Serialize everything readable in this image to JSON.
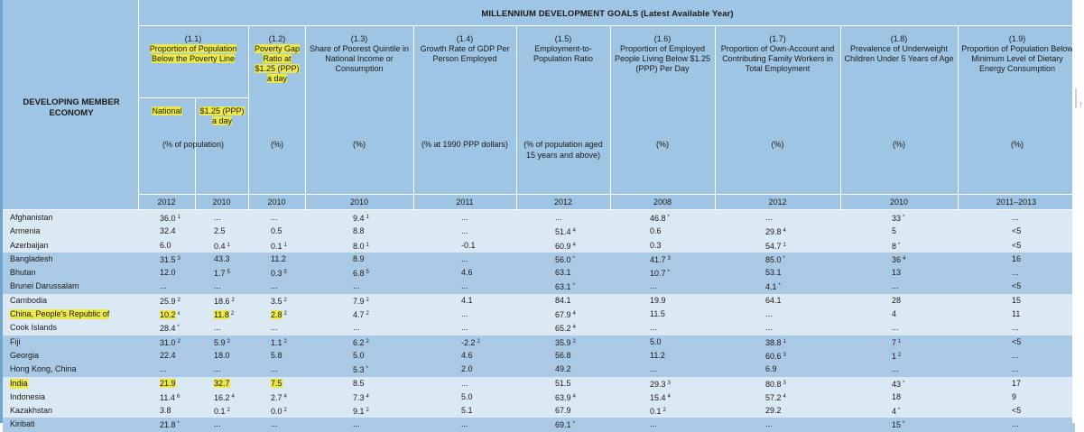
{
  "title": "MILLENNIUM DEVELOPMENT GOALS (Latest Available Year)",
  "row_header": "DEVELOPING MEMBER ECONOMY",
  "indicators": [
    {
      "num": "(1.1)",
      "label": "Proportion of Population Below the Poverty Line",
      "unit": "(% of population)"
    },
    {
      "num": "(1.2)",
      "label": "Poverty Gap Ratio at $1.25 (PPP) a day",
      "unit": "(%)"
    },
    {
      "num": "(1.3)",
      "label": "Share of Poorest Quintile in National Income or Consumption",
      "unit": "(%)"
    },
    {
      "num": "(1.4)",
      "label": "Growth Rate of GDP Per Person Employed",
      "unit": "(% at 1990 PPP dollars)"
    },
    {
      "num": "(1.5)",
      "label": "Employment-to-Population Ratio",
      "unit": "(% of population aged 15 years and above)"
    },
    {
      "num": "(1.6)",
      "label": "Proportion of Employed People Living Below $1.25 (PPP) Per Day",
      "unit": "(%)"
    },
    {
      "num": "(1.7)",
      "label": "Proportion of Own-Account and Contributing Family Workers in Total Employment",
      "unit": "(%)"
    },
    {
      "num": "(1.8)",
      "label": "Prevalence of Underweight Children Under 5 Years of Age",
      "unit": "(%)"
    },
    {
      "num": "(1.9)",
      "label": "Proportion of Population Below Minimum Level of Dietary Energy Consumption",
      "unit": "(%)"
    }
  ],
  "sub_national": "National",
  "sub_ppp": "$1.25 (PPP) a day",
  "years": [
    "2012",
    "2010",
    "2010",
    "2010",
    "2011",
    "2012",
    "2008",
    "2012",
    "2010",
    "2011–2013"
  ],
  "rows": [
    {
      "name": "Afghanistan",
      "v": [
        [
          "36.0",
          "1"
        ],
        [
          "...",
          ""
        ],
        [
          "...",
          ""
        ],
        [
          "9.4",
          "1"
        ],
        [
          "...",
          ""
        ],
        [
          "...",
          ""
        ],
        [
          "46.8",
          "*"
        ],
        [
          "...",
          ""
        ],
        [
          "33",
          "*"
        ],
        [
          "...",
          ""
        ]
      ]
    },
    {
      "name": "Armenia",
      "v": [
        [
          "32.4",
          ""
        ],
        [
          "2.5",
          ""
        ],
        [
          "0.5",
          ""
        ],
        [
          "8.8",
          ""
        ],
        [
          "...",
          ""
        ],
        [
          "51.4",
          "4"
        ],
        [
          "0.6",
          ""
        ],
        [
          "29.8",
          "4"
        ],
        [
          "5",
          ""
        ],
        [
          "<5",
          ""
        ]
      ]
    },
    {
      "name": "Azerbaijan",
      "v": [
        [
          "6.0",
          ""
        ],
        [
          "0.4",
          "1"
        ],
        [
          "0.1",
          "1"
        ],
        [
          "8.0",
          "1"
        ],
        [
          "-0.1",
          ""
        ],
        [
          "60.9",
          "4"
        ],
        [
          "0.3",
          ""
        ],
        [
          "54.7",
          "1"
        ],
        [
          "8",
          "*"
        ],
        [
          "<5",
          ""
        ]
      ]
    },
    {
      "name": "Bangladesh",
      "v": [
        [
          "31.5",
          "3"
        ],
        [
          "43.3",
          ""
        ],
        [
          "11.2",
          ""
        ],
        [
          "8.9",
          ""
        ],
        [
          "...",
          ""
        ],
        [
          "56.0",
          "*"
        ],
        [
          "41.7",
          "3"
        ],
        [
          "85.0",
          "*"
        ],
        [
          "36",
          "4"
        ],
        [
          "16",
          ""
        ]
      ]
    },
    {
      "name": "Bhutan",
      "v": [
        [
          "12.0",
          ""
        ],
        [
          "1.7",
          "5"
        ],
        [
          "0.3",
          "5"
        ],
        [
          "6.8",
          "5"
        ],
        [
          "4.6",
          ""
        ],
        [
          "63.1",
          ""
        ],
        [
          "10.7",
          "*"
        ],
        [
          "53.1",
          ""
        ],
        [
          "13",
          ""
        ],
        [
          "...",
          ""
        ]
      ]
    },
    {
      "name": "Brunei Darussalam",
      "v": [
        [
          "...",
          ""
        ],
        [
          "...",
          ""
        ],
        [
          "...",
          ""
        ],
        [
          "...",
          ""
        ],
        [
          "...",
          ""
        ],
        [
          "63.1",
          "*"
        ],
        [
          "...",
          ""
        ],
        [
          "4.1",
          "*"
        ],
        [
          "...",
          ""
        ],
        [
          "<5",
          ""
        ]
      ]
    },
    {
      "name": "Cambodia",
      "v": [
        [
          "25.9",
          "2"
        ],
        [
          "18.6",
          "2"
        ],
        [
          "3.5",
          "2"
        ],
        [
          "7.9",
          "2"
        ],
        [
          "4.1",
          ""
        ],
        [
          "84.1",
          ""
        ],
        [
          "19.9",
          ""
        ],
        [
          "64.1",
          ""
        ],
        [
          "28",
          ""
        ],
        [
          "15",
          ""
        ]
      ]
    },
    {
      "name": "China, People's Republic of",
      "v": [
        [
          "10.2",
          "x"
        ],
        [
          "11.8",
          "2"
        ],
        [
          "2.8",
          "2"
        ],
        [
          "4.7",
          "2"
        ],
        [
          "...",
          ""
        ],
        [
          "67.9",
          "4"
        ],
        [
          "11.5",
          ""
        ],
        [
          "...",
          ""
        ],
        [
          "4",
          ""
        ],
        [
          "11",
          ""
        ]
      ]
    },
    {
      "name": "Cook Islands",
      "v": [
        [
          "28.4",
          "*"
        ],
        [
          "...",
          ""
        ],
        [
          "...",
          ""
        ],
        [
          "...",
          ""
        ],
        [
          "...",
          ""
        ],
        [
          "65.2",
          "4"
        ],
        [
          "...",
          ""
        ],
        [
          "...",
          ""
        ],
        [
          "...",
          ""
        ],
        [
          "...",
          ""
        ]
      ]
    },
    {
      "name": "Fiji",
      "v": [
        [
          "31.0",
          "2"
        ],
        [
          "5.9",
          "2"
        ],
        [
          "1.1",
          "2"
        ],
        [
          "6.2",
          "2"
        ],
        [
          "-2.2",
          "2"
        ],
        [
          "35.9",
          "2"
        ],
        [
          "5.0",
          ""
        ],
        [
          "38.8",
          "1"
        ],
        [
          "7",
          "1"
        ],
        [
          "<5",
          ""
        ]
      ]
    },
    {
      "name": "Georgia",
      "v": [
        [
          "22.4",
          ""
        ],
        [
          "18.0",
          ""
        ],
        [
          "5.8",
          ""
        ],
        [
          "5.0",
          ""
        ],
        [
          "4.6",
          ""
        ],
        [
          "56.8",
          ""
        ],
        [
          "11.2",
          ""
        ],
        [
          "60.6",
          "3"
        ],
        [
          "1",
          "2"
        ],
        [
          "...",
          ""
        ]
      ]
    },
    {
      "name": "Hong Kong, China",
      "v": [
        [
          "...",
          ""
        ],
        [
          "...",
          ""
        ],
        [
          "...",
          ""
        ],
        [
          "5.3",
          "*"
        ],
        [
          "2.0",
          ""
        ],
        [
          "49.2",
          ""
        ],
        [
          "...",
          ""
        ],
        [
          "6.9",
          ""
        ],
        [
          "...",
          ""
        ],
        [
          "...",
          ""
        ]
      ]
    },
    {
      "name": "India",
      "v": [
        [
          "21.9",
          ""
        ],
        [
          "32.7",
          ""
        ],
        [
          "7.5",
          ""
        ],
        [
          "8.5",
          ""
        ],
        [
          "...",
          ""
        ],
        [
          "51.5",
          ""
        ],
        [
          "29.3",
          "3"
        ],
        [
          "80.8",
          "3"
        ],
        [
          "43",
          "*"
        ],
        [
          "17",
          ""
        ]
      ]
    },
    {
      "name": "Indonesia",
      "v": [
        [
          "11.4",
          "6"
        ],
        [
          "16.2",
          "4"
        ],
        [
          "2.7",
          "4"
        ],
        [
          "7.3",
          "4"
        ],
        [
          "5.0",
          ""
        ],
        [
          "63.9",
          "4"
        ],
        [
          "15.4",
          "4"
        ],
        [
          "57.2",
          "4"
        ],
        [
          "18",
          ""
        ],
        [
          "9",
          ""
        ]
      ]
    },
    {
      "name": "Kazakhstan",
      "v": [
        [
          "3.8",
          ""
        ],
        [
          "0.1",
          "2"
        ],
        [
          "0.0",
          "2"
        ],
        [
          "9.1",
          "2"
        ],
        [
          "5.1",
          ""
        ],
        [
          "67.9",
          ""
        ],
        [
          "0.1",
          "2"
        ],
        [
          "29.2",
          ""
        ],
        [
          "4",
          "*"
        ],
        [
          "<5",
          ""
        ]
      ]
    },
    {
      "name": "Kiribati",
      "v": [
        [
          "21.8",
          "*"
        ],
        [
          "...",
          ""
        ],
        [
          "...",
          ""
        ],
        [
          "...",
          ""
        ],
        [
          "...",
          ""
        ],
        [
          "69.1",
          "*"
        ],
        [
          "...",
          ""
        ],
        [
          "...",
          ""
        ],
        [
          "15",
          "*"
        ],
        [
          "...",
          ""
        ]
      ]
    }
  ]
}
